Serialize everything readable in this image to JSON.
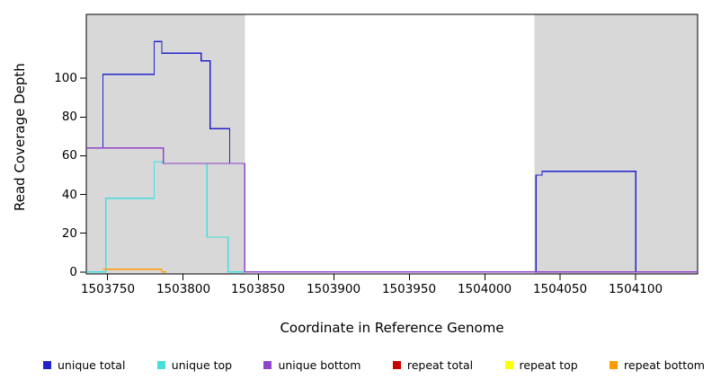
{
  "figure": {
    "shade_color": "#d8d8d8",
    "box_color": "#000000",
    "background": "#ffffff"
  },
  "chart_data": {
    "type": "line",
    "subtype": "step-coverage",
    "title": "",
    "xlabel": "Coordinate in Reference Genome",
    "ylabel": "Read Coverage Depth",
    "legend_position": "bottom",
    "grid": false,
    "x_domain": [
      1503736,
      1504141
    ],
    "y_domain": [
      -1,
      133
    ],
    "x_tick_values": [
      1503750,
      1503800,
      1503850,
      1503900,
      1503950,
      1504000,
      1504050,
      1504100
    ],
    "x_tick_labels": [
      "1503750",
      "1503800",
      "1503850",
      "1503900",
      "1503950",
      "1504000",
      "1504050",
      "1504100"
    ],
    "y_tick_values": [
      0,
      20,
      40,
      60,
      80,
      100
    ],
    "y_tick_labels": [
      "0",
      "20",
      "40",
      "60",
      "80",
      "100"
    ],
    "shaded_regions": [
      {
        "start": 1503736,
        "end": 1503841
      },
      {
        "start": 1504033,
        "end": 1504141
      }
    ],
    "series": [
      {
        "name": "unique total",
        "color": "#2222cc",
        "steps": [
          [
            1503736,
            64
          ],
          [
            1503747,
            102
          ],
          [
            1503781,
            119
          ],
          [
            1503786,
            113
          ],
          [
            1503812,
            109
          ],
          [
            1503818,
            74
          ],
          [
            1503831,
            56
          ],
          [
            1503841,
            0
          ],
          [
            1504034,
            50
          ],
          [
            1504038,
            52
          ],
          [
            1504100,
            0
          ]
        ],
        "end": 1504141
      },
      {
        "name": "unique top",
        "color": "#45dede",
        "steps": [
          [
            1503736,
            0
          ],
          [
            1503749,
            38
          ],
          [
            1503781,
            57
          ],
          [
            1503786,
            56
          ],
          [
            1503816,
            18
          ],
          [
            1503830,
            0
          ]
        ],
        "end": 1504141
      },
      {
        "name": "unique bottom",
        "color": "#9044cc",
        "steps": [
          [
            1503736,
            64
          ],
          [
            1503787,
            56
          ],
          [
            1503841,
            0
          ]
        ],
        "end": 1504141
      },
      {
        "name": "repeat total",
        "color": "#cc0000",
        "steps": [
          [
            1503747,
            1.4
          ]
        ],
        "end": 1503786
      },
      {
        "name": "repeat top",
        "color": "#ffff00",
        "steps": [
          [
            1503747,
            1.4
          ]
        ],
        "end": 1503786
      },
      {
        "name": "repeat bottom",
        "color": "#ff9b00",
        "steps": [
          [
            1503747,
            1.4
          ],
          [
            1503786,
            0
          ]
        ],
        "end": 1503789
      }
    ]
  },
  "legend": {
    "items": [
      {
        "label": "unique total",
        "color": "#2222cc"
      },
      {
        "label": "unique top",
        "color": "#45dede"
      },
      {
        "label": "unique bottom",
        "color": "#9044cc"
      },
      {
        "label": "repeat total",
        "color": "#cc0000"
      },
      {
        "label": "repeat top",
        "color": "#ffff00"
      },
      {
        "label": "repeat bottom",
        "color": "#ff9b00"
      }
    ]
  }
}
